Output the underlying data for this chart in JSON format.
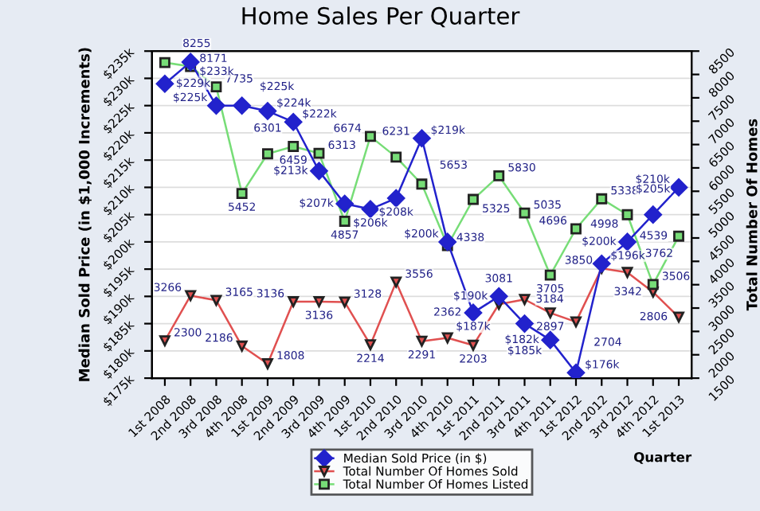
{
  "chart_data": {
    "type": "line",
    "title": "Home Sales Per Quarter",
    "xlabel": "Quarter",
    "ylabel": "Median Sold Price (in $1,000 Increments)",
    "y2label": "Total Number Of Homes",
    "categories": [
      "1st 2008",
      "2nd 2008",
      "3rd 2008",
      "4th 2008",
      "1st 2009",
      "2nd 2009",
      "3rd 2009",
      "4th 2009",
      "1st 2010",
      "2nd 2010",
      "3rd 2010",
      "4th 2010",
      "1st 2011",
      "2nd 2011",
      "3rd 2011",
      "4th 2011",
      "1st 2012",
      "2nd 2012",
      "3rd 2012",
      "4th 2012",
      "1st 2013"
    ],
    "series": [
      {
        "name": "Median Sold Price (in $)",
        "color": "#2222cc",
        "marker": "diamond",
        "values": [
          229,
          233,
          225,
          225,
          224,
          222,
          213,
          207,
          206,
          208,
          219,
          200,
          187,
          190,
          185,
          182,
          176,
          196,
          200,
          205,
          210
        ],
        "value_labels": [
          "$229k",
          "$233k",
          "$225k",
          "$225k",
          "$224k",
          "$222k",
          "$213k",
          "$207k",
          "$206k",
          "$208k",
          "$219k",
          "$200k",
          "$187k",
          "$190k",
          "$185k",
          "$182k",
          "$176k",
          "$196k",
          "$200k",
          "$205k",
          "$210k"
        ]
      },
      {
        "name": "Total Number Of Homes Sold",
        "color": "#e05050",
        "marker": "triangle",
        "axis": "y2",
        "values": [
          2300,
          3266,
          3165,
          2186,
          1808,
          3136,
          3136,
          3128,
          2214,
          3556,
          2291,
          2362,
          2203,
          3081,
          3184,
          2897,
          2704,
          3850,
          3762,
          3342,
          2806
        ]
      },
      {
        "name": "Total Number Of Homes Listed",
        "color": "#77dd77",
        "marker": "square",
        "axis": "y2",
        "values": [
          8255,
          8171,
          7735,
          5452,
          6301,
          6459,
          6313,
          4857,
          6674,
          6231,
          5653,
          4338,
          5325,
          5830,
          5035,
          3705,
          4696,
          5338,
          4998,
          3506,
          4539
        ]
      }
    ],
    "ylim": [
      175,
      235
    ],
    "yticks": [
      {
        "value": 175,
        "label": "$175k"
      },
      {
        "value": 180,
        "label": "$180k"
      },
      {
        "value": 185,
        "label": "$185k"
      },
      {
        "value": 190,
        "label": "$190k"
      },
      {
        "value": 195,
        "label": "$195k"
      },
      {
        "value": 200,
        "label": "$200k"
      },
      {
        "value": 205,
        "label": "$205k"
      },
      {
        "value": 210,
        "label": "$210k"
      },
      {
        "value": 215,
        "label": "$215k"
      },
      {
        "value": 220,
        "label": "$220k"
      },
      {
        "value": 225,
        "label": "$225k"
      },
      {
        "value": 230,
        "label": "$230k"
      },
      {
        "value": 235,
        "label": "$235k"
      }
    ],
    "y2lim": [
      1500,
      8500
    ],
    "y2ticks": [
      1500,
      2000,
      2500,
      3000,
      3500,
      4000,
      4500,
      5000,
      5500,
      6000,
      6500,
      7000,
      7500,
      8000,
      8500
    ],
    "grid": "y",
    "legend": "bottom",
    "data_labels": true
  }
}
